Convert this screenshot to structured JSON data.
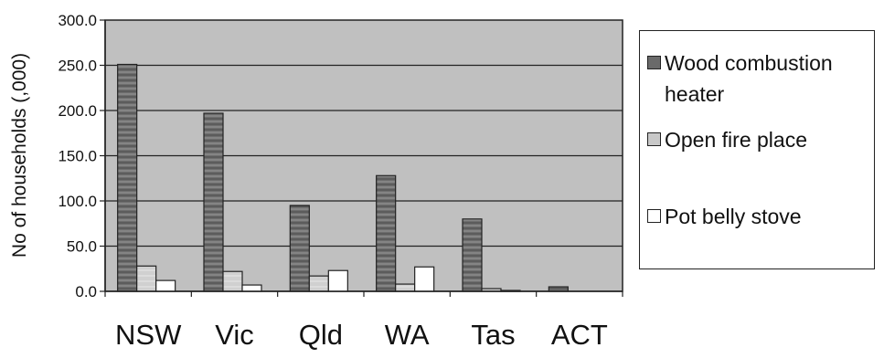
{
  "chart_data": {
    "type": "bar",
    "ylabel": "No of households (,000)",
    "xlabel": "",
    "title": "",
    "categories": [
      "NSW",
      "Vic",
      "Qld",
      "WA",
      "Tas",
      "ACT"
    ],
    "series": [
      {
        "name": "Wood combustion heater",
        "values": [
          251.0,
          197.0,
          95.0,
          128.0,
          80.0,
          5.0
        ],
        "color": "#6a6a6a"
      },
      {
        "name": "Open fire place",
        "values": [
          28.0,
          22.0,
          17.0,
          8.0,
          3.0,
          0.0
        ],
        "color": "#c8c8c8"
      },
      {
        "name": "Pot belly stove",
        "values": [
          12.0,
          7.0,
          23.0,
          27.0,
          1.0,
          0.0
        ],
        "color": "#ffffff"
      }
    ],
    "ylim": [
      0,
      300
    ],
    "yticks": [
      "0.0",
      "50.0",
      "100.0",
      "150.0",
      "200.0",
      "250.0",
      "300.0"
    ],
    "grid": true,
    "legend_position": "right",
    "plot_background": "#c0c0c0"
  }
}
